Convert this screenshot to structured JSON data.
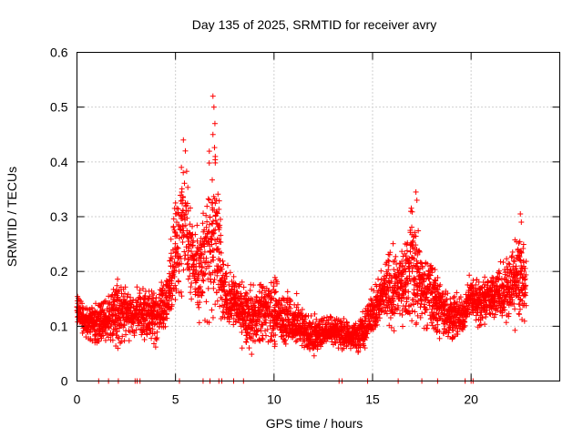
{
  "chart_data": {
    "type": "scatter",
    "title": "Day 135 of 2025, SRMTID for receiver avry",
    "xlabel": "GPS time / hours",
    "ylabel": "SRMTID / TECUs",
    "xlim": [
      0,
      24.5
    ],
    "ylim": [
      0,
      0.6
    ],
    "xticks": [
      0,
      5,
      10,
      15,
      20
    ],
    "xtick_labels": [
      "0",
      "5",
      "10",
      "15",
      "20"
    ],
    "yticks": [
      0,
      0.1,
      0.2,
      0.3,
      0.4,
      0.5,
      0.6
    ],
    "ytick_labels": [
      "0",
      "0.1",
      "0.2",
      "0.3",
      "0.4",
      "0.5",
      "0.6"
    ],
    "grid": true,
    "marker": "+",
    "color": "#ff0000",
    "envelope": {
      "hours": [
        0,
        0.5,
        1,
        1.5,
        2,
        2.5,
        3,
        3.5,
        4,
        4.5,
        5,
        5.5,
        6,
        6.5,
        7,
        7.5,
        8,
        8.5,
        9,
        9.5,
        10,
        10.5,
        11,
        11.5,
        12,
        12.5,
        13,
        13.5,
        14,
        14.5,
        15,
        15.5,
        16,
        16.5,
        17,
        17.5,
        18,
        18.5,
        19,
        19.5,
        20,
        20.5,
        21,
        21.5,
        22,
        22.5,
        22.8
      ],
      "low": [
        0.1,
        0.07,
        0.06,
        0.06,
        0.06,
        0.07,
        0.07,
        0.07,
        0.06,
        0.08,
        0.12,
        0.14,
        0.12,
        0.06,
        0.07,
        0.08,
        0.1,
        0.05,
        0.05,
        0.06,
        0.05,
        0.05,
        0.05,
        0.05,
        0.04,
        0.06,
        0.06,
        0.05,
        0.05,
        0.05,
        0.07,
        0.09,
        0.08,
        0.1,
        0.08,
        0.09,
        0.08,
        0.06,
        0.06,
        0.07,
        0.11,
        0.09,
        0.1,
        0.1,
        0.1,
        0.09,
        0.12
      ],
      "high": [
        0.16,
        0.14,
        0.15,
        0.16,
        0.2,
        0.18,
        0.17,
        0.18,
        0.18,
        0.2,
        0.35,
        0.44,
        0.3,
        0.36,
        0.52,
        0.22,
        0.2,
        0.19,
        0.18,
        0.2,
        0.2,
        0.18,
        0.17,
        0.14,
        0.12,
        0.12,
        0.13,
        0.12,
        0.11,
        0.14,
        0.18,
        0.22,
        0.26,
        0.25,
        0.35,
        0.25,
        0.24,
        0.2,
        0.18,
        0.16,
        0.2,
        0.2,
        0.21,
        0.22,
        0.25,
        0.3,
        0.22
      ]
    },
    "peaks": [
      {
        "x": 5.4,
        "y": 0.44
      },
      {
        "x": 5.5,
        "y": 0.42
      },
      {
        "x": 5.3,
        "y": 0.39
      },
      {
        "x": 6.9,
        "y": 0.52
      },
      {
        "x": 6.95,
        "y": 0.5
      },
      {
        "x": 7.0,
        "y": 0.47
      },
      {
        "x": 6.9,
        "y": 0.45
      },
      {
        "x": 17.2,
        "y": 0.345
      },
      {
        "x": 17.25,
        "y": 0.33
      },
      {
        "x": 22.5,
        "y": 0.305
      },
      {
        "x": 22.55,
        "y": 0.29
      }
    ],
    "zero_points_x": [
      1.1,
      1.6,
      2.1,
      2.95,
      3.05,
      3.2,
      5.2,
      6.4,
      6.75,
      7.2,
      7.35,
      7.95,
      8.45,
      13.3,
      13.45,
      14.75,
      16.3,
      17.5,
      18.3,
      19.7,
      20.0,
      20.1
    ]
  }
}
